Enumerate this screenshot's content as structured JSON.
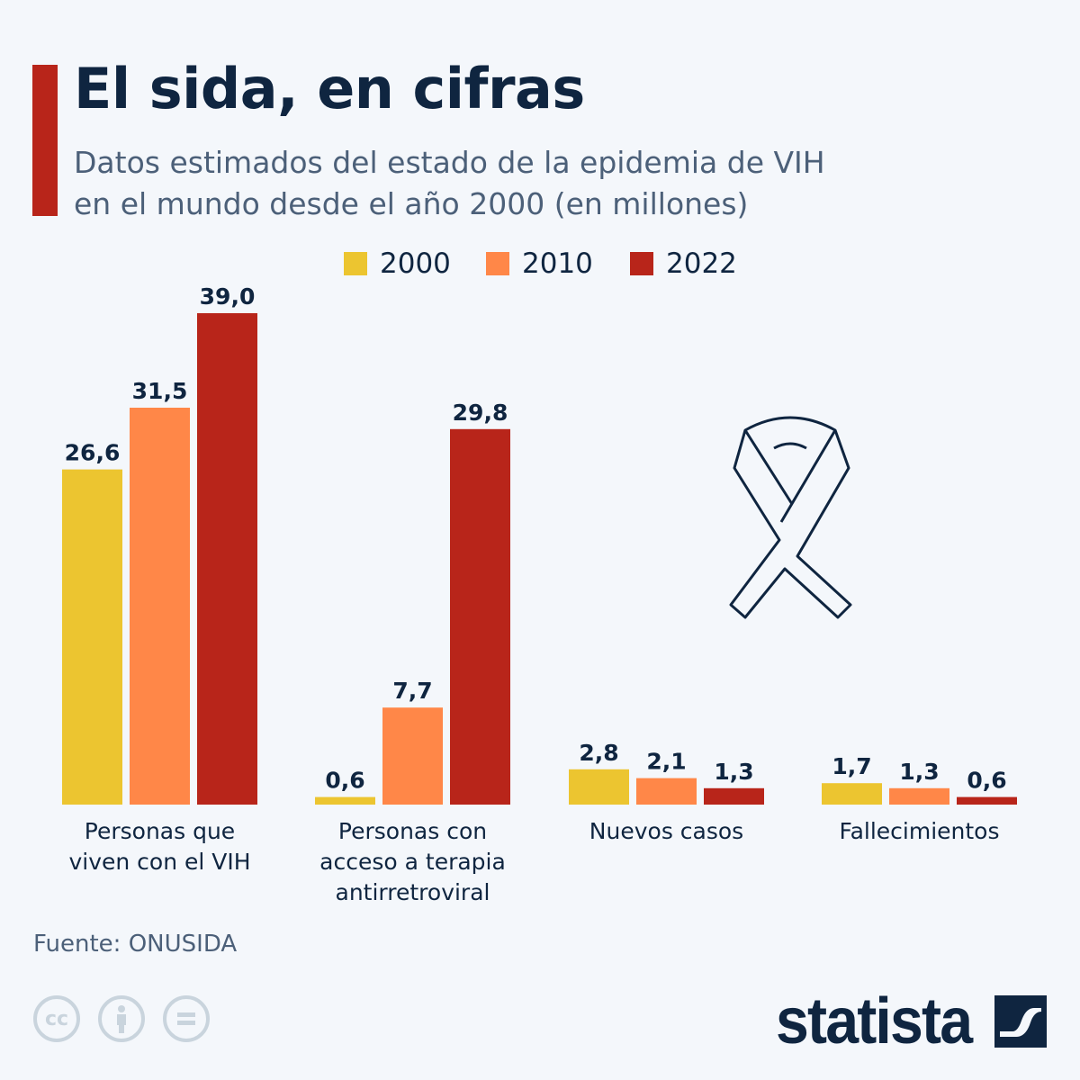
{
  "header": {
    "title": "El sida, en cifras",
    "subtitle_line1": "Datos estimados del estado de la epidemia de VIH",
    "subtitle_line2": "en el mundo desde el año 2000 (en millones)"
  },
  "chart_data": {
    "type": "bar",
    "title": "El sida, en cifras",
    "categories": [
      [
        "Personas que",
        "viven con el VIH"
      ],
      [
        "Personas con",
        "acceso a terapia",
        "antirretroviral"
      ],
      [
        "Nuevos casos"
      ],
      [
        "Fallecimientos"
      ]
    ],
    "series": [
      {
        "name": "2000",
        "color": "#ecc530",
        "values": [
          26.6,
          0.6,
          2.8,
          1.7
        ],
        "labels": [
          "26,6",
          "0,6",
          "2,8",
          "1,7"
        ]
      },
      {
        "name": "2010",
        "color": "#ff8748",
        "values": [
          31.5,
          7.7,
          2.1,
          1.3
        ],
        "labels": [
          "31,5",
          "7,7",
          "2,1",
          "1,3"
        ]
      },
      {
        "name": "2022",
        "color": "#b8251a",
        "values": [
          39.0,
          29.8,
          1.3,
          0.6
        ],
        "labels": [
          "39,0",
          "29,8",
          "1,3",
          "0,6"
        ]
      }
    ],
    "ylim": [
      0,
      39
    ],
    "grid": false,
    "legend": "top-center"
  },
  "footer": {
    "source": "Fuente: ONUSIDA",
    "cc_label": "cc",
    "logo": "statista"
  },
  "icons": [
    "awareness-ribbon-icon",
    "creative-commons-icon",
    "attribution-icon",
    "no-derivatives-icon",
    "statista-logo-mark"
  ]
}
